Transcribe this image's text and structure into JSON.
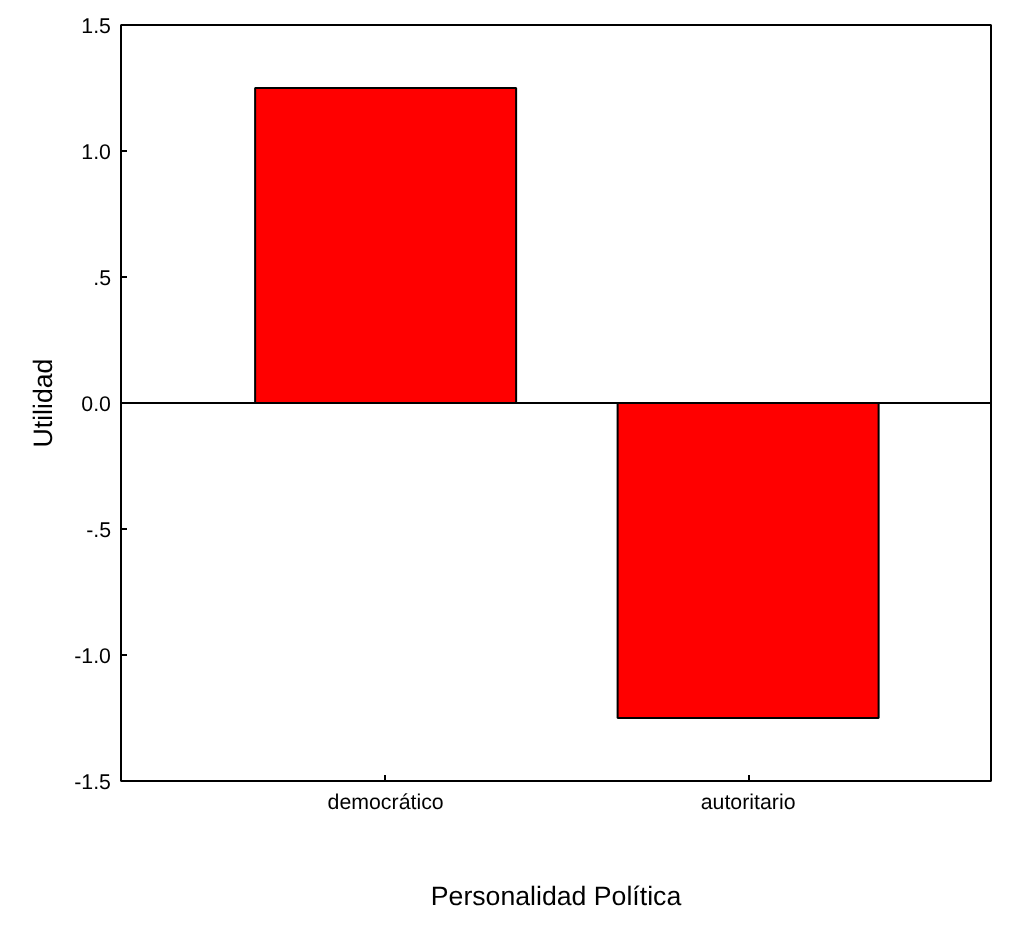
{
  "chart_data": {
    "type": "bar",
    "xlabel": "Personalidad Política",
    "ylabel": "Utilidad",
    "categories": [
      "democrático",
      "autoritario"
    ],
    "values": [
      1.25,
      -1.25
    ],
    "color": "#ff0000",
    "ylim": [
      -1.5,
      1.5
    ],
    "yticks": [
      {
        "value": -1.5,
        "label": "-1.5"
      },
      {
        "value": -1.0,
        "label": "-1.0"
      },
      {
        "value": -0.5,
        "label": "-.5"
      },
      {
        "value": 0,
        "label": "0.0"
      },
      {
        "value": 0.5,
        "label": ".5"
      },
      {
        "value": 1.0,
        "label": "1.0"
      },
      {
        "value": 1.5,
        "label": "1.5"
      }
    ],
    "ref_lines": [
      {
        "axis": "y",
        "value": 0,
        "color": "#000000"
      }
    ],
    "grid": false
  }
}
